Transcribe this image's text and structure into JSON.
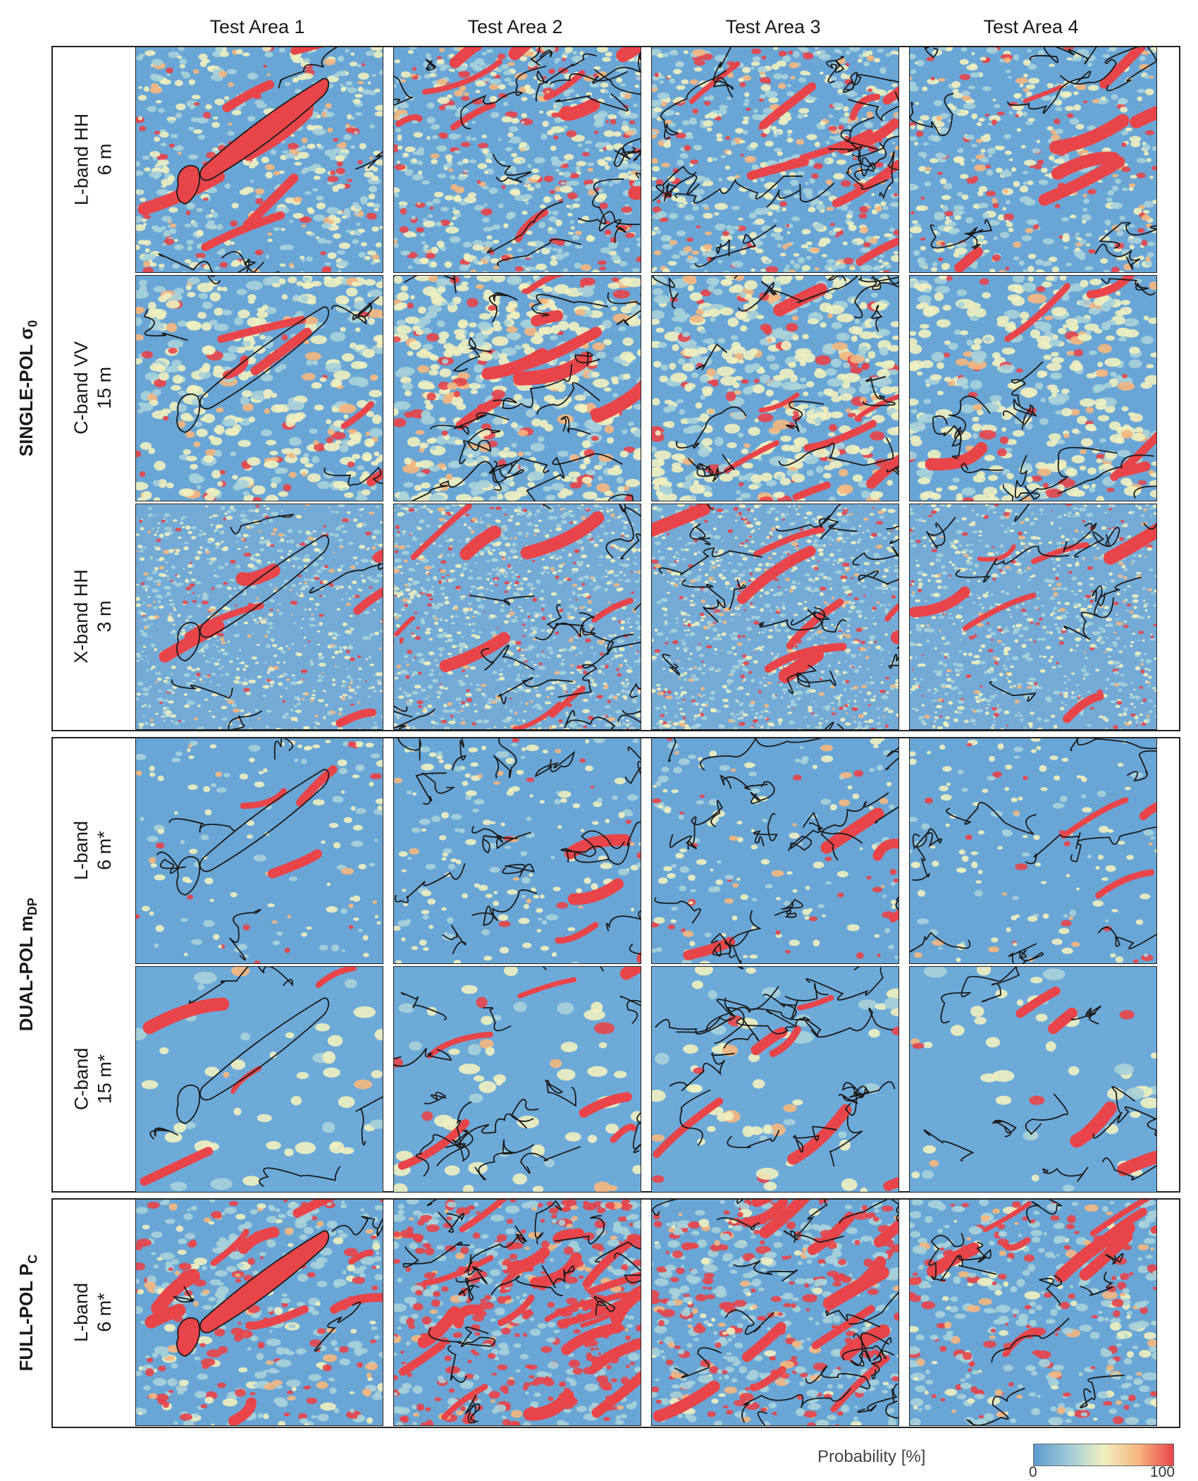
{
  "columns": [
    "Test Area 1",
    "Test Area 2",
    "Test Area 3",
    "Test Area 4"
  ],
  "groups": [
    {
      "id": "single",
      "label": "SINGLE-POL σ",
      "sub": "0"
    },
    {
      "id": "dual",
      "label": "DUAL-POL m",
      "sub": "DP"
    },
    {
      "id": "full",
      "label": "FULL-POL P",
      "sub": "C"
    }
  ],
  "rows": [
    {
      "group": "single",
      "line1": "L-band HH",
      "line2": "6 m",
      "style": "lhh"
    },
    {
      "group": "single",
      "line1": "C-band VV",
      "line2": "15 m",
      "style": "cvv"
    },
    {
      "group": "single",
      "line1": "X-band HH",
      "line2": "3 m",
      "style": "xhh"
    },
    {
      "group": "dual",
      "line1": "L-band",
      "line2": "6 m*",
      "style": "ldp"
    },
    {
      "group": "dual",
      "line1": "C-band",
      "line2": "15 m*",
      "style": "cdp"
    },
    {
      "group": "full",
      "line1": "L-band",
      "line2": "6 m*",
      "style": "lpc"
    }
  ],
  "legend": {
    "title": "Probability [%]",
    "min": "0",
    "max": "100"
  },
  "colors": {
    "low": "#5d9ad0",
    "mid": "#f0f0c0",
    "high": "#e8454a",
    "outline": "#1a1a1a"
  }
}
